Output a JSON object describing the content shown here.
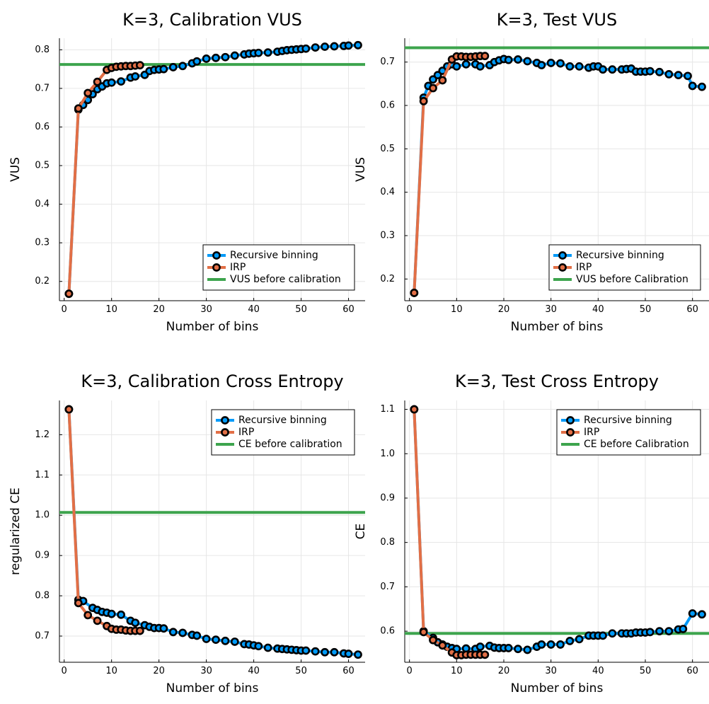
{
  "chart_data": [
    {
      "type": "line",
      "title": "K=3, Calibration VUS",
      "xlabel": "Number of bins",
      "ylabel": "VUS",
      "xlim": [
        -1,
        63.5
      ],
      "ylim": [
        0.15,
        0.83
      ],
      "xticks": [
        0,
        10,
        20,
        30,
        40,
        50,
        60
      ],
      "yticks": [
        0.2,
        0.3,
        0.4,
        0.5,
        0.6,
        0.7,
        0.8
      ],
      "ytick_decimals": 1,
      "grid": true,
      "legend_position": "bottom-right",
      "series": [
        {
          "name": "Recursive binning",
          "color": "#009af9",
          "marker": true,
          "x": [
            1,
            3,
            4,
            5,
            6,
            7,
            8,
            9,
            10,
            12,
            14,
            15,
            17,
            18,
            19,
            20,
            21,
            23,
            25,
            27,
            28,
            30,
            32,
            34,
            36,
            38,
            39,
            40,
            41,
            43,
            45,
            46,
            47,
            48,
            49,
            50,
            51,
            53,
            55,
            57,
            59,
            60,
            62
          ],
          "y": [
            0.168,
            0.645,
            0.657,
            0.67,
            0.685,
            0.698,
            0.705,
            0.713,
            0.715,
            0.718,
            0.728,
            0.731,
            0.735,
            0.745,
            0.748,
            0.749,
            0.75,
            0.755,
            0.758,
            0.765,
            0.77,
            0.777,
            0.779,
            0.781,
            0.785,
            0.788,
            0.79,
            0.791,
            0.792,
            0.793,
            0.795,
            0.797,
            0.799,
            0.8,
            0.801,
            0.802,
            0.803,
            0.806,
            0.808,
            0.809,
            0.81,
            0.811,
            0.812
          ]
        },
        {
          "name": "IRP",
          "color": "#e26f46",
          "marker": true,
          "x": [
            1,
            3,
            5,
            7,
            9,
            10,
            11,
            12,
            13,
            14,
            15,
            16
          ],
          "y": [
            0.168,
            0.648,
            0.688,
            0.717,
            0.748,
            0.753,
            0.756,
            0.757,
            0.758,
            0.758,
            0.759,
            0.76
          ]
        },
        {
          "name": "VUS before calibration",
          "color": "#3da44d",
          "marker": false,
          "hline": 0.762
        }
      ]
    },
    {
      "type": "line",
      "title": "K=3, Test VUS",
      "xlabel": "Number of bins",
      "ylabel": "VUS",
      "xlim": [
        -1,
        63.5
      ],
      "ylim": [
        0.15,
        0.755
      ],
      "xticks": [
        0,
        10,
        20,
        30,
        40,
        50,
        60
      ],
      "yticks": [
        0.2,
        0.3,
        0.4,
        0.5,
        0.6,
        0.7
      ],
      "ytick_decimals": 1,
      "grid": true,
      "legend_position": "bottom-right",
      "series": [
        {
          "name": "Recursive binning",
          "color": "#009af9",
          "marker": true,
          "x": [
            1,
            3,
            4,
            5,
            6,
            7,
            8,
            9,
            10,
            12,
            14,
            15,
            17,
            18,
            19,
            20,
            21,
            23,
            25,
            27,
            28,
            30,
            32,
            34,
            36,
            38,
            39,
            40,
            41,
            43,
            45,
            46,
            47,
            48,
            49,
            50,
            51,
            53,
            55,
            57,
            59,
            60,
            62
          ],
          "y": [
            0.168,
            0.618,
            0.645,
            0.66,
            0.67,
            0.68,
            0.69,
            0.695,
            0.69,
            0.695,
            0.695,
            0.69,
            0.693,
            0.7,
            0.704,
            0.707,
            0.705,
            0.706,
            0.702,
            0.698,
            0.693,
            0.698,
            0.697,
            0.69,
            0.69,
            0.687,
            0.69,
            0.69,
            0.683,
            0.683,
            0.683,
            0.684,
            0.685,
            0.678,
            0.678,
            0.678,
            0.679,
            0.677,
            0.672,
            0.67,
            0.668,
            0.645,
            0.643
          ]
        },
        {
          "name": "IRP",
          "color": "#e26f46",
          "marker": true,
          "x": [
            1,
            3,
            5,
            7,
            9,
            10,
            11,
            12,
            13,
            14,
            15,
            16
          ],
          "y": [
            0.168,
            0.61,
            0.64,
            0.658,
            0.706,
            0.713,
            0.713,
            0.712,
            0.712,
            0.713,
            0.714,
            0.714
          ]
        },
        {
          "name": "VUS before Calibration",
          "color": "#3da44d",
          "marker": false,
          "hline": 0.733
        }
      ]
    },
    {
      "type": "line",
      "title": "K=3, Calibration Cross Entropy",
      "xlabel": "Number of bins",
      "ylabel": "regularized CE",
      "xlim": [
        -1,
        63.5
      ],
      "ylim": [
        0.635,
        1.285
      ],
      "xticks": [
        0,
        10,
        20,
        30,
        40,
        50,
        60
      ],
      "yticks": [
        0.7,
        0.8,
        0.9,
        1.0,
        1.1,
        1.2
      ],
      "ytick_decimals": 1,
      "grid": true,
      "legend_position": "top-right",
      "series": [
        {
          "name": "Recursive binning",
          "color": "#009af9",
          "marker": true,
          "x": [
            1,
            3,
            4,
            6,
            7,
            8,
            9,
            10,
            12,
            14,
            15,
            17,
            18,
            19,
            20,
            21,
            23,
            25,
            27,
            28,
            30,
            32,
            34,
            36,
            38,
            39,
            40,
            41,
            43,
            45,
            46,
            47,
            48,
            49,
            50,
            51,
            53,
            55,
            57,
            59,
            60,
            62
          ],
          "y": [
            1.263,
            0.79,
            0.787,
            0.77,
            0.765,
            0.76,
            0.758,
            0.755,
            0.753,
            0.738,
            0.733,
            0.727,
            0.723,
            0.72,
            0.72,
            0.719,
            0.71,
            0.708,
            0.703,
            0.701,
            0.693,
            0.691,
            0.688,
            0.686,
            0.68,
            0.679,
            0.677,
            0.675,
            0.671,
            0.669,
            0.668,
            0.667,
            0.666,
            0.665,
            0.664,
            0.664,
            0.662,
            0.66,
            0.66,
            0.657,
            0.656,
            0.654
          ]
        },
        {
          "name": "IRP",
          "color": "#e26f46",
          "marker": true,
          "x": [
            1,
            3,
            5,
            7,
            9,
            10,
            11,
            12,
            13,
            14,
            15,
            16
          ],
          "y": [
            1.263,
            0.782,
            0.752,
            0.738,
            0.725,
            0.718,
            0.716,
            0.716,
            0.714,
            0.713,
            0.713,
            0.713
          ]
        },
        {
          "name": "CE before calibration",
          "color": "#3da44d",
          "marker": false,
          "hline": 1.007
        }
      ]
    },
    {
      "type": "line",
      "title": "K=3, Test Cross Entropy",
      "xlabel": "Number of bins",
      "ylabel": "CE",
      "xlim": [
        -1,
        63.5
      ],
      "ylim": [
        0.53,
        1.12
      ],
      "xticks": [
        0,
        10,
        20,
        30,
        40,
        50,
        60
      ],
      "yticks": [
        0.6,
        0.7,
        0.8,
        0.9,
        1.0,
        1.1
      ],
      "ytick_decimals": 1,
      "grid": true,
      "legend_position": "top-right",
      "series": [
        {
          "name": "Recursive binning",
          "color": "#009af9",
          "marker": true,
          "x": [
            1,
            3,
            5,
            6,
            7,
            8,
            9,
            10,
            12,
            14,
            15,
            17,
            18,
            19,
            20,
            21,
            23,
            25,
            27,
            28,
            30,
            32,
            34,
            36,
            38,
            39,
            40,
            41,
            43,
            45,
            46,
            47,
            48,
            49,
            50,
            51,
            53,
            55,
            57,
            58,
            60,
            62
          ],
          "y": [
            1.1,
            0.6,
            0.585,
            0.575,
            0.57,
            0.565,
            0.562,
            0.56,
            0.561,
            0.56,
            0.565,
            0.567,
            0.563,
            0.562,
            0.562,
            0.562,
            0.56,
            0.558,
            0.565,
            0.57,
            0.57,
            0.57,
            0.578,
            0.582,
            0.59,
            0.59,
            0.59,
            0.59,
            0.595,
            0.595,
            0.595,
            0.595,
            0.597,
            0.597,
            0.597,
            0.598,
            0.6,
            0.6,
            0.604,
            0.605,
            0.64,
            0.638
          ]
        },
        {
          "name": "IRP",
          "color": "#e26f46",
          "marker": true,
          "x": [
            1,
            3,
            5,
            7,
            9,
            10,
            11,
            12,
            13,
            14,
            15,
            16
          ],
          "y": [
            1.1,
            0.598,
            0.58,
            0.568,
            0.552,
            0.546,
            0.546,
            0.547,
            0.547,
            0.547,
            0.547,
            0.547
          ]
        },
        {
          "name": "CE before Calibration",
          "color": "#3da44d",
          "marker": false,
          "hline": 0.595
        }
      ]
    }
  ]
}
